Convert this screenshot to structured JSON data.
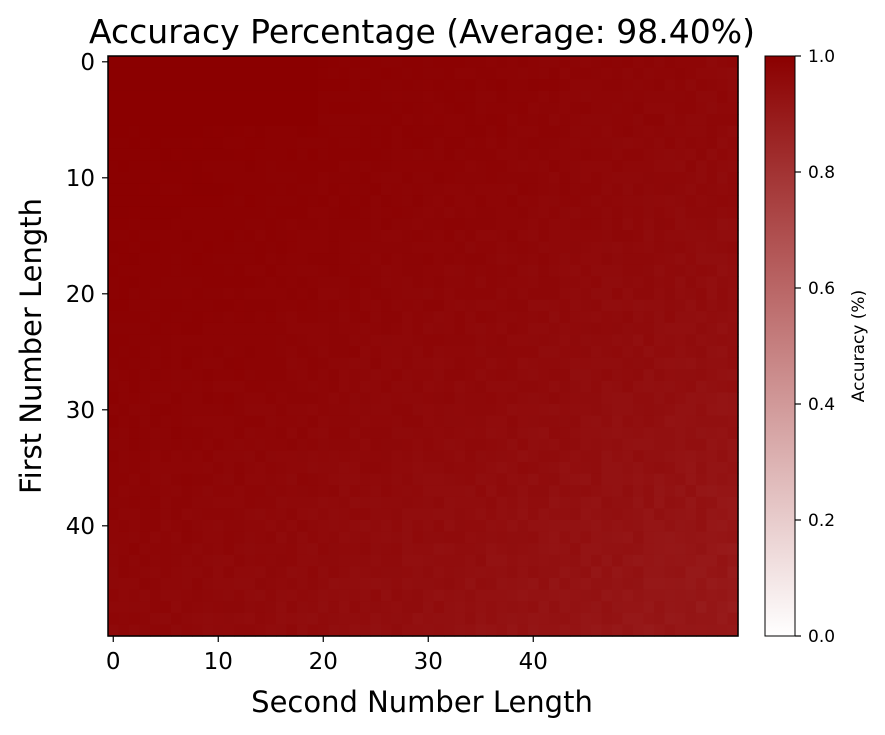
{
  "chart_data": {
    "type": "heatmap",
    "title": "Accuracy Percentage (Average: 98.40%)",
    "xlabel": "Second Number Length",
    "ylabel": "First Number Length",
    "x_ticks": [
      "0",
      "10",
      "20",
      "30",
      "40"
    ],
    "y_ticks": [
      "0",
      "10",
      "20",
      "30",
      "40"
    ],
    "rows": 50,
    "cols": 60,
    "value_range": [
      0.0,
      1.0
    ],
    "average_accuracy": 0.984,
    "colormap": [
      "#ffffff",
      "#8b0000"
    ],
    "colorbar": {
      "label": "Accuracy (%)",
      "ticks": [
        "0.0",
        "0.2",
        "0.4",
        "0.6",
        "0.8",
        "1.0"
      ]
    }
  }
}
